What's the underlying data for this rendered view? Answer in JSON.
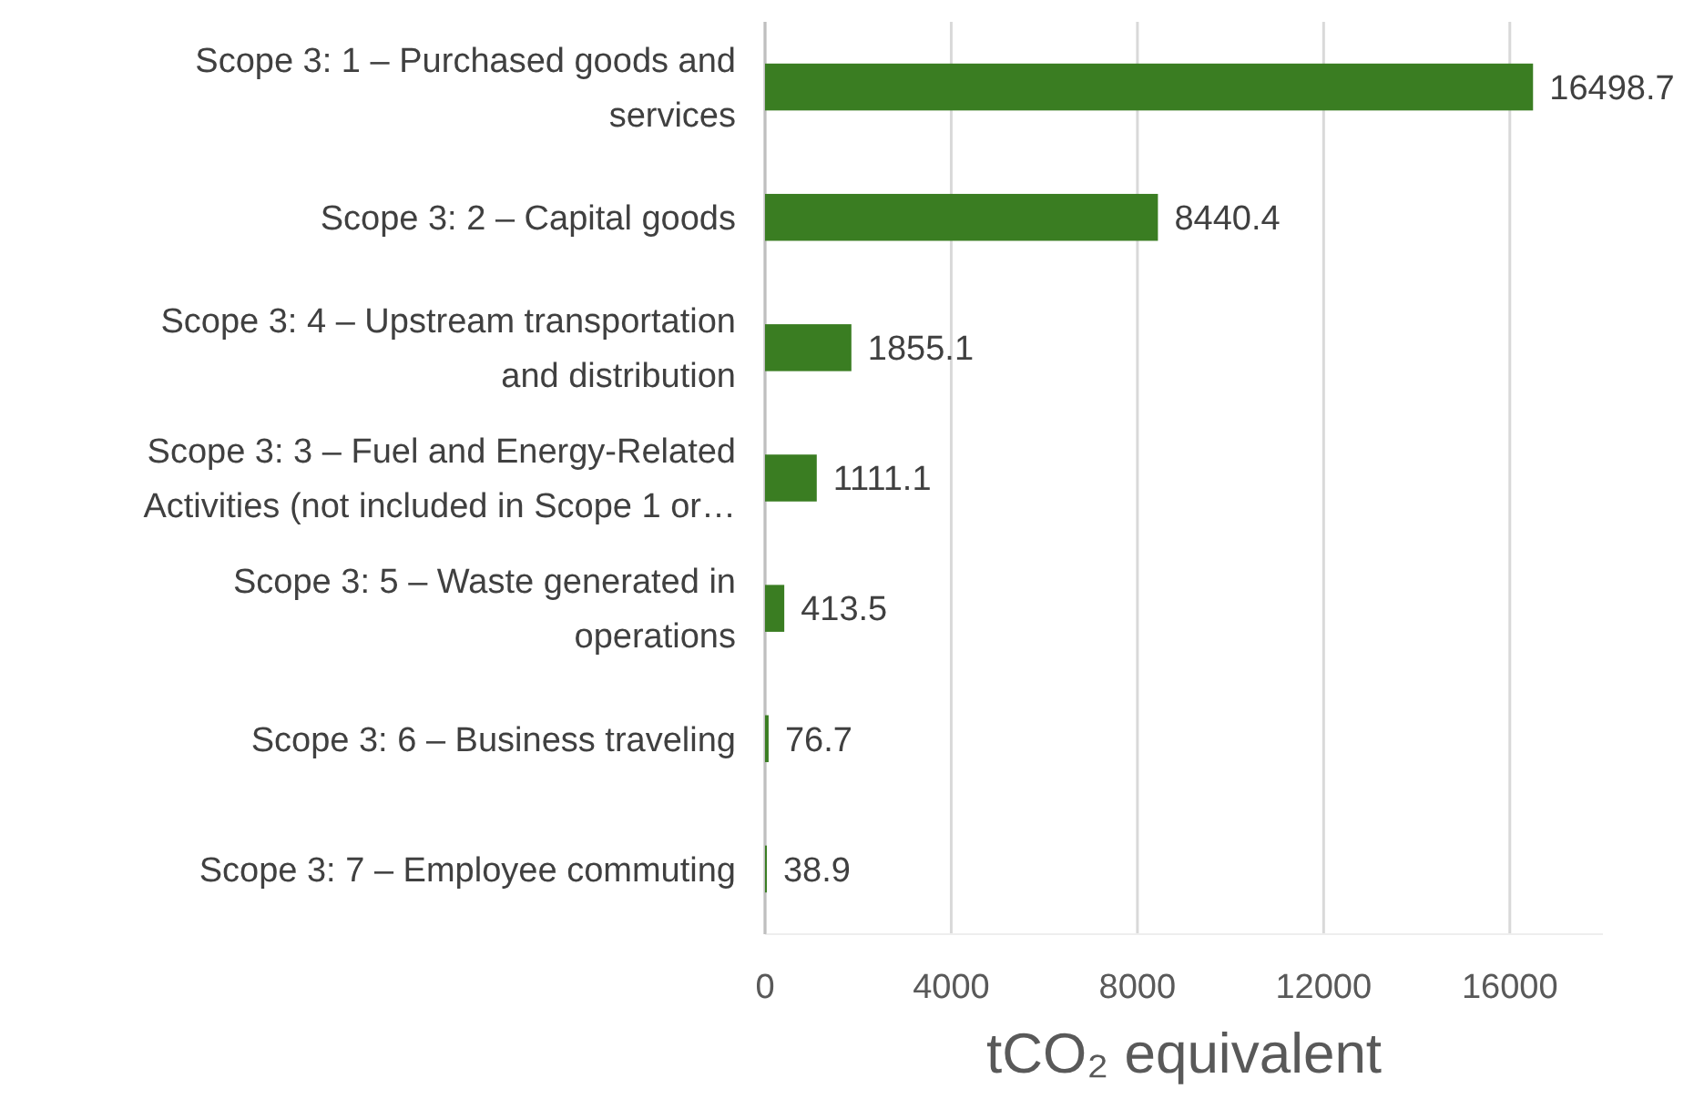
{
  "chart_data": {
    "type": "bar",
    "orientation": "horizontal",
    "xlabel": "tCO₂ equivalent",
    "categories": [
      "Scope 3: 1 – Purchased goods and services",
      "Scope 3: 2 – Capital goods",
      "Scope 3: 4 – Upstream transportation and distribution",
      "Scope 3: 3 – Fuel and Energy-Related Activities (not included in Scope 1 or…",
      "Scope 3: 5 – Waste generated in operations",
      "Scope 3: 6 – Business traveling",
      "Scope 3: 7 – Employee commuting"
    ],
    "values": [
      16498.7,
      8440.4,
      1855.1,
      1111.1,
      413.5,
      76.7,
      38.9
    ],
    "color": "#3a7d22",
    "xlim": [
      0,
      18000
    ],
    "xticks": [
      0,
      4000,
      8000,
      12000,
      16000
    ],
    "grid": "x",
    "data_labels": true
  }
}
